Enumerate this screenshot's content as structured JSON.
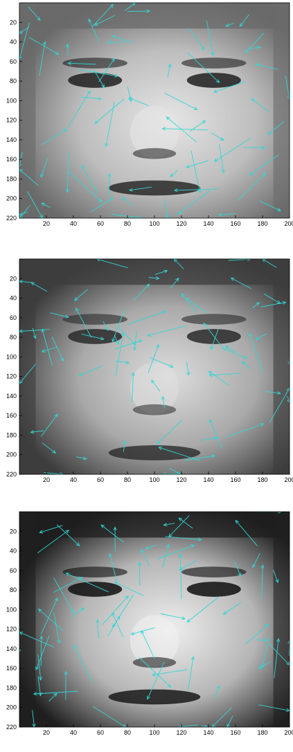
{
  "figure": {
    "panels": [
      {
        "id": "face-1",
        "x_ticks": [
          20,
          40,
          60,
          80,
          100,
          120,
          140,
          160,
          180,
          200
        ],
        "y_ticks": [
          20,
          40,
          60,
          80,
          100,
          120,
          140,
          160,
          180,
          200,
          220
        ],
        "xlim": [
          0,
          200
        ],
        "ylim": [
          220,
          0
        ],
        "arrow_color": "#33d6d6",
        "image_description": "grayscale face, smiling, hair on left, eyes open"
      },
      {
        "id": "face-2",
        "x_ticks": [
          20,
          40,
          60,
          80,
          100,
          120,
          140,
          160,
          180,
          200
        ],
        "y_ticks": [
          20,
          40,
          60,
          80,
          100,
          120,
          140,
          160,
          180,
          200,
          220
        ],
        "xlim": [
          0,
          200
        ],
        "ylim": [
          220,
          0
        ],
        "arrow_color": "#33d6d6",
        "image_description": "grayscale face, tilted, light on right cheek"
      },
      {
        "id": "face-3",
        "x_ticks": [
          20,
          40,
          60,
          80,
          100,
          120,
          140,
          160,
          180,
          200
        ],
        "y_ticks": [
          20,
          40,
          60,
          80,
          100,
          120,
          140,
          160,
          180,
          200,
          220
        ],
        "xlim": [
          0,
          200
        ],
        "ylim": [
          220,
          0
        ],
        "arrow_color": "#33d6d6",
        "image_description": "grayscale face, high contrast, dark eyes"
      }
    ]
  }
}
